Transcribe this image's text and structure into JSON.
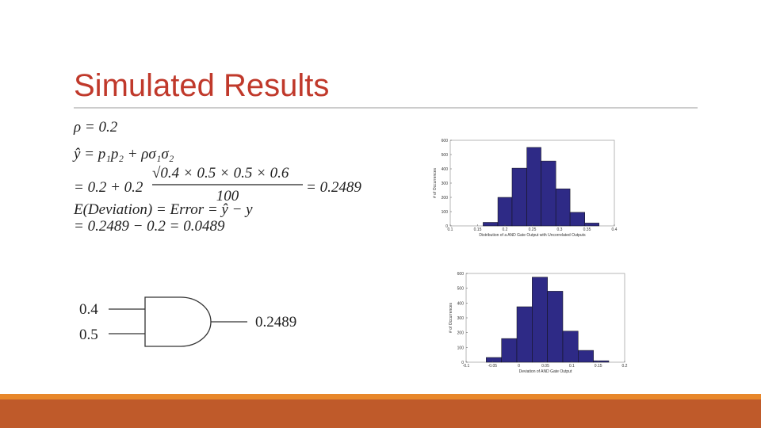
{
  "title": "Simulated Results",
  "equations": {
    "line1": "ρ = 0.2",
    "line2": "ŷ = p₁p₂ + ρσ₁σ₂",
    "line3": {
      "lead": "= 0.2 + 0.2",
      "numerator": "√0.4 × 0.5 × 0.5 × 0.6",
      "denominator": "100",
      "result": "= 0.2489"
    },
    "line4": "E(Deviation) = Error = ŷ − y",
    "line5": "= 0.2489 − 0.2 = 0.0489"
  },
  "gate": {
    "input1": "0.4",
    "input2": "0.5",
    "output": "0.2489"
  },
  "histograms": [
    {
      "xlabel": "Distribution of a AND Gate Output with Uncorrelated Outputs",
      "ylabel": "# of Occurrences",
      "color": "#2e2a86",
      "bins": [
        0.16,
        0.187,
        0.213,
        0.24,
        0.266,
        0.293,
        0.319,
        0.346,
        0.372
      ],
      "counts": [
        25,
        200,
        405,
        550,
        455,
        260,
        95,
        20
      ],
      "xlim": [
        0.1,
        0.4
      ],
      "ylim": [
        0,
        600
      ],
      "xticks": [
        0.1,
        0.15,
        0.2,
        0.25,
        0.3,
        0.35,
        0.4
      ],
      "yticks": [
        0,
        100,
        200,
        300,
        400,
        500,
        600
      ]
    },
    {
      "xlabel": "Deviation of AND Gate Output",
      "ylabel": "# of Occurrences",
      "color": "#2e2a86",
      "bins": [
        -0.062,
        -0.033,
        -0.004,
        0.025,
        0.054,
        0.083,
        0.112,
        0.141,
        0.17
      ],
      "counts": [
        32,
        160,
        375,
        575,
        480,
        210,
        80,
        10
      ],
      "xlim": [
        -0.1,
        0.2
      ],
      "ylim": [
        0,
        600
      ],
      "xticks": [
        -0.1,
        -0.05,
        0,
        0.05,
        0.1,
        0.15,
        0.2
      ],
      "yticks": [
        0,
        100,
        200,
        300,
        400,
        500,
        600
      ]
    }
  ]
}
